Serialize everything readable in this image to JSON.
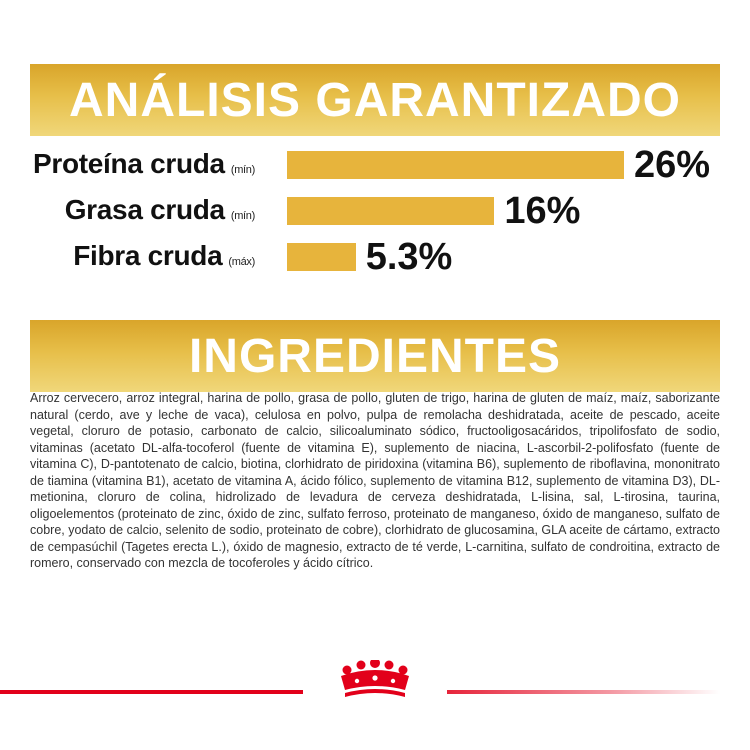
{
  "analysis": {
    "title": "ANÁLISIS GARANTIZADO",
    "rows": [
      {
        "label": "Proteína cruda",
        "qualifier": "(mín)",
        "value": "26%",
        "amount": 26
      },
      {
        "label": "Grasa cruda",
        "qualifier": "(mín)",
        "value": "16%",
        "amount": 16
      },
      {
        "label": "Fibra cruda",
        "qualifier": "(máx)",
        "value": "5.3%",
        "amount": 5.3
      }
    ],
    "bar_color": "#e7b43c"
  },
  "ingredients": {
    "title": "INGREDIENTES",
    "text": "Arroz cervecero, arroz integral, harina de pollo, grasa de pollo, gluten de trigo, harina de gluten de maíz, maíz, saborizante natural (cerdo, ave y leche de vaca), celulosa en polvo, pulpa de remolacha deshidratada, aceite de pescado, aceite vegetal, cloruro de potasio, carbonato de calcio, silicoaluminato sódico, fructooligosacáridos, tripolifosfato de sodio, vitaminas (acetato DL-alfa-tocoferol (fuente de vitamina E), suplemento de niacina, L-ascorbil-2-polifosfato (fuente de vitamina C), D-pantotenato de calcio, biotina, clorhidrato de piridoxina (vitamina B6), suplemento de riboflavina, mononitrato de tiamina (vitamina B1), acetato de vitamina A, ácido fólico, suplemento de vitamina B12, suplemento de vitamina D3), DL-metionina, cloruro de colina, hidrolizado de levadura de cerveza deshidratada, L-lisina, sal, L-tirosina, taurina, oligoelementos (proteinato de zinc, óxido de zinc, sulfato ferroso, proteinato de manganeso, óxido de manganeso, sulfato de cobre, yodato de calcio, selenito de sodio, proteinato de cobre), clorhidrato de glucosamina, GLA aceite de cártamo, extracto de cempasúchil (Tagetes erecta L.), óxido de magnesio, extracto de té verde, L-carnitina, sulfato de condroitina, extracto de romero, conservado con mezcla de tocoferoles y ácido cítrico."
  },
  "brand": {
    "logo_icon": "crown-icon",
    "accent_color": "#e2001a"
  }
}
